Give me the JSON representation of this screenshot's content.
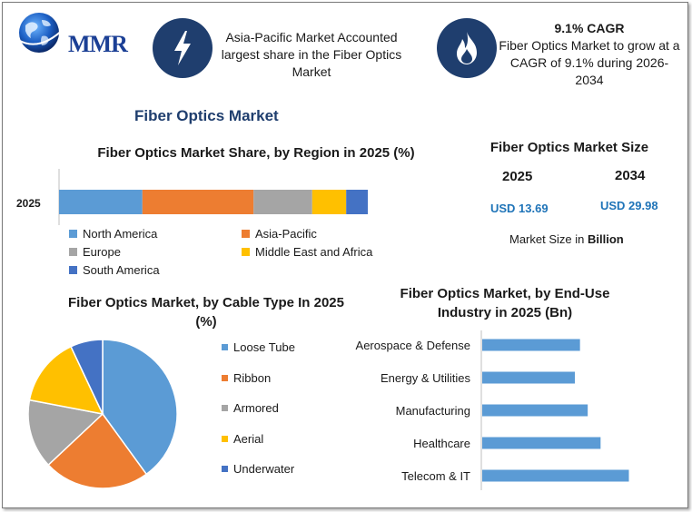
{
  "logo": {
    "text": "MMR"
  },
  "highlights": [
    {
      "icon": "lightning-icon",
      "title": "",
      "text": "Asia-Pacific Market Accounted largest share in the Fiber Optics Market"
    },
    {
      "icon": "flame-icon",
      "title": "9.1% CAGR",
      "text": "Fiber Optics Market to grow at a CAGR of 9.1% during 2026-2034"
    }
  ],
  "main_title": "Fiber Optics Market",
  "market_size": {
    "title": "Fiber Optics Market Size",
    "year1": "2025",
    "value1": "USD 13.69",
    "year2": "2034",
    "value2": "USD 29.98",
    "note_prefix": "Market Size in ",
    "note_unit": "Billion"
  },
  "colors": {
    "blue": "#5b9bd5",
    "orange": "#ed7d31",
    "gray": "#a5a5a5",
    "yellow": "#ffc000",
    "darkblue": "#4472c4",
    "navy": "#1f3e6e"
  },
  "chart_data": [
    {
      "type": "bar",
      "orientation": "horizontal-stacked",
      "title": "Fiber Optics Market Share, by Region in 2025 (%)",
      "categories": [
        "2025"
      ],
      "series": [
        {
          "name": "North America",
          "values": [
            27
          ],
          "color": "#5b9bd5"
        },
        {
          "name": "Asia-Pacific",
          "values": [
            36
          ],
          "color": "#ed7d31"
        },
        {
          "name": "Europe",
          "values": [
            19
          ],
          "color": "#a5a5a5"
        },
        {
          "name": "Middle East and Africa",
          "values": [
            11
          ],
          "color": "#ffc000"
        },
        {
          "name": "South America",
          "values": [
            7
          ],
          "color": "#4472c4"
        }
      ],
      "legend": "bottom"
    },
    {
      "type": "pie",
      "title": "Fiber Optics Market, by Cable Type In 2025 (%)",
      "labels": [
        "Loose Tube",
        "Ribbon",
        "Armored",
        "Aerial",
        "Underwater"
      ],
      "values": [
        40,
        23,
        15,
        15,
        7
      ],
      "colors": [
        "#5b9bd5",
        "#ed7d31",
        "#a5a5a5",
        "#ffc000",
        "#4472c4"
      ],
      "legend": "right"
    },
    {
      "type": "bar",
      "orientation": "horizontal",
      "title": "Fiber Optics Market, by End-Use Industry in 2025 (Bn)",
      "categories": [
        "Aerospace & Defense",
        "Energy & Utilities",
        "Manufacturing",
        "Healthcare",
        "Telecom & IT"
      ],
      "values": [
        1.9,
        1.8,
        2.05,
        2.3,
        2.85
      ],
      "color": "#5b9bd5"
    }
  ]
}
